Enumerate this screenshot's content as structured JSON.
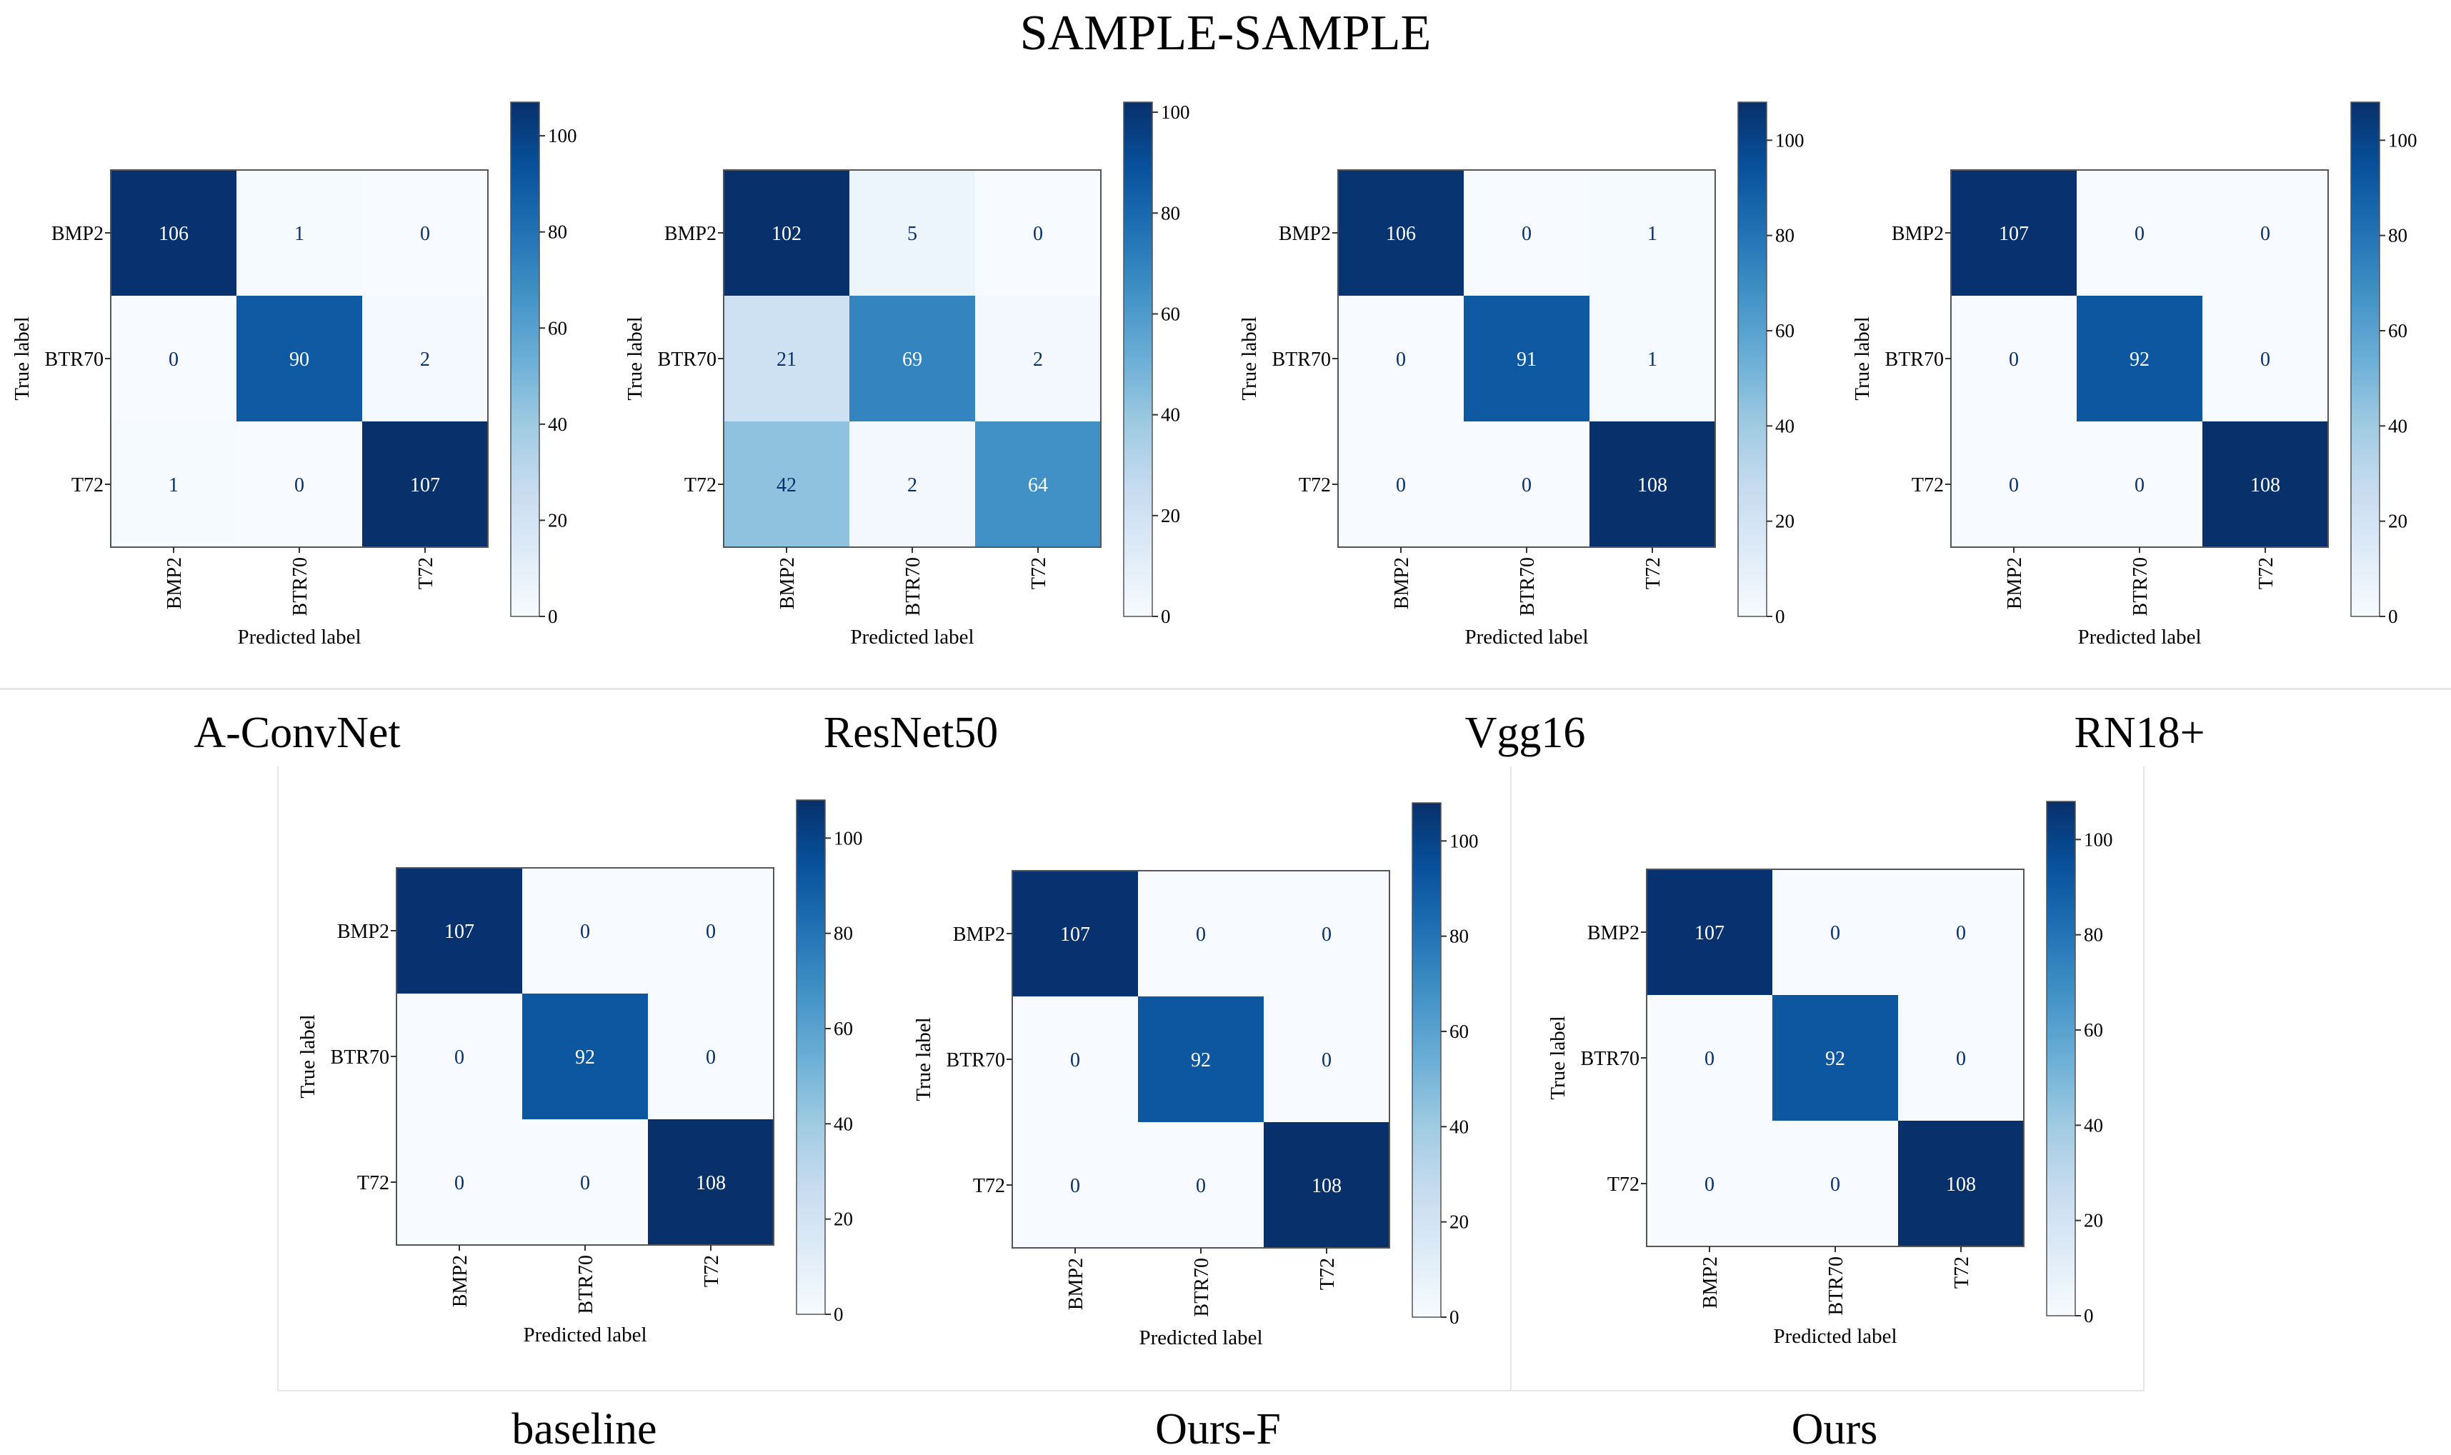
{
  "title": "SAMPLE-SAMPLE",
  "colors": {
    "colormap": "Blues",
    "low": "#f7fbff",
    "high": "#08306b",
    "text_dark": "#08306b",
    "text_light": "#ffffff",
    "frame": "#555555"
  },
  "chart_data": [
    {
      "type": "heatmap",
      "name": "A-ConvNet",
      "xlabel": "Predicted label",
      "ylabel": "True label",
      "x_categories": [
        "BMP2",
        "BTR70",
        "T72"
      ],
      "y_categories": [
        "BMP2",
        "BTR70",
        "T72"
      ],
      "values": [
        [
          106,
          1,
          0
        ],
        [
          0,
          90,
          2
        ],
        [
          1,
          0,
          107
        ]
      ],
      "colorbar": {
        "range": [
          0,
          107
        ],
        "ticks": [
          "0",
          "20",
          "40",
          "60",
          "80",
          "100"
        ]
      }
    },
    {
      "type": "heatmap",
      "name": "ResNet50",
      "xlabel": "Predicted label",
      "ylabel": "True label",
      "x_categories": [
        "BMP2",
        "BTR70",
        "T72"
      ],
      "y_categories": [
        "BMP2",
        "BTR70",
        "T72"
      ],
      "values": [
        [
          102,
          5,
          0
        ],
        [
          21,
          69,
          2
        ],
        [
          42,
          2,
          64
        ]
      ],
      "colorbar": {
        "range": [
          0,
          102
        ],
        "ticks": [
          "0",
          "20",
          "40",
          "60",
          "80",
          "100"
        ]
      }
    },
    {
      "type": "heatmap",
      "name": "Vgg16",
      "xlabel": "Predicted label",
      "ylabel": "True label",
      "x_categories": [
        "BMP2",
        "BTR70",
        "T72"
      ],
      "y_categories": [
        "BMP2",
        "BTR70",
        "T72"
      ],
      "values": [
        [
          106,
          0,
          1
        ],
        [
          0,
          91,
          1
        ],
        [
          0,
          0,
          108
        ]
      ],
      "colorbar": {
        "range": [
          0,
          108
        ],
        "ticks": [
          "0",
          "20",
          "40",
          "60",
          "80",
          "100"
        ]
      }
    },
    {
      "type": "heatmap",
      "name": "RN18+",
      "xlabel": "Predicted label",
      "ylabel": "True label",
      "x_categories": [
        "BMP2",
        "BTR70",
        "T72"
      ],
      "y_categories": [
        "BMP2",
        "BTR70",
        "T72"
      ],
      "values": [
        [
          107,
          0,
          0
        ],
        [
          0,
          92,
          0
        ],
        [
          0,
          0,
          108
        ]
      ],
      "colorbar": {
        "range": [
          0,
          108
        ],
        "ticks": [
          "0",
          "20",
          "40",
          "60",
          "80",
          "100"
        ]
      }
    },
    {
      "type": "heatmap",
      "name": "baseline",
      "xlabel": "Predicted label",
      "ylabel": "True label",
      "x_categories": [
        "BMP2",
        "BTR70",
        "T72"
      ],
      "y_categories": [
        "BMP2",
        "BTR70",
        "T72"
      ],
      "values": [
        [
          107,
          0,
          0
        ],
        [
          0,
          92,
          0
        ],
        [
          0,
          0,
          108
        ]
      ],
      "colorbar": {
        "range": [
          0,
          108
        ],
        "ticks": [
          "0",
          "20",
          "40",
          "60",
          "80",
          "100"
        ]
      }
    },
    {
      "type": "heatmap",
      "name": "Ours-F",
      "xlabel": "Predicted label",
      "ylabel": "True label",
      "x_categories": [
        "BMP2",
        "BTR70",
        "T72"
      ],
      "y_categories": [
        "BMP2",
        "BTR70",
        "T72"
      ],
      "values": [
        [
          107,
          0,
          0
        ],
        [
          0,
          92,
          0
        ],
        [
          0,
          0,
          108
        ]
      ],
      "colorbar": {
        "range": [
          0,
          108
        ],
        "ticks": [
          "0",
          "20",
          "40",
          "60",
          "80",
          "100"
        ]
      }
    },
    {
      "type": "heatmap",
      "name": "Ours",
      "xlabel": "Predicted label",
      "ylabel": "True label",
      "x_categories": [
        "BMP2",
        "BTR70",
        "T72"
      ],
      "y_categories": [
        "BMP2",
        "BTR70",
        "T72"
      ],
      "values": [
        [
          107,
          0,
          0
        ],
        [
          0,
          92,
          0
        ],
        [
          0,
          0,
          108
        ]
      ],
      "colorbar": {
        "range": [
          0,
          108
        ],
        "ticks": [
          "0",
          "20",
          "40",
          "60",
          "80",
          "100"
        ]
      }
    }
  ]
}
